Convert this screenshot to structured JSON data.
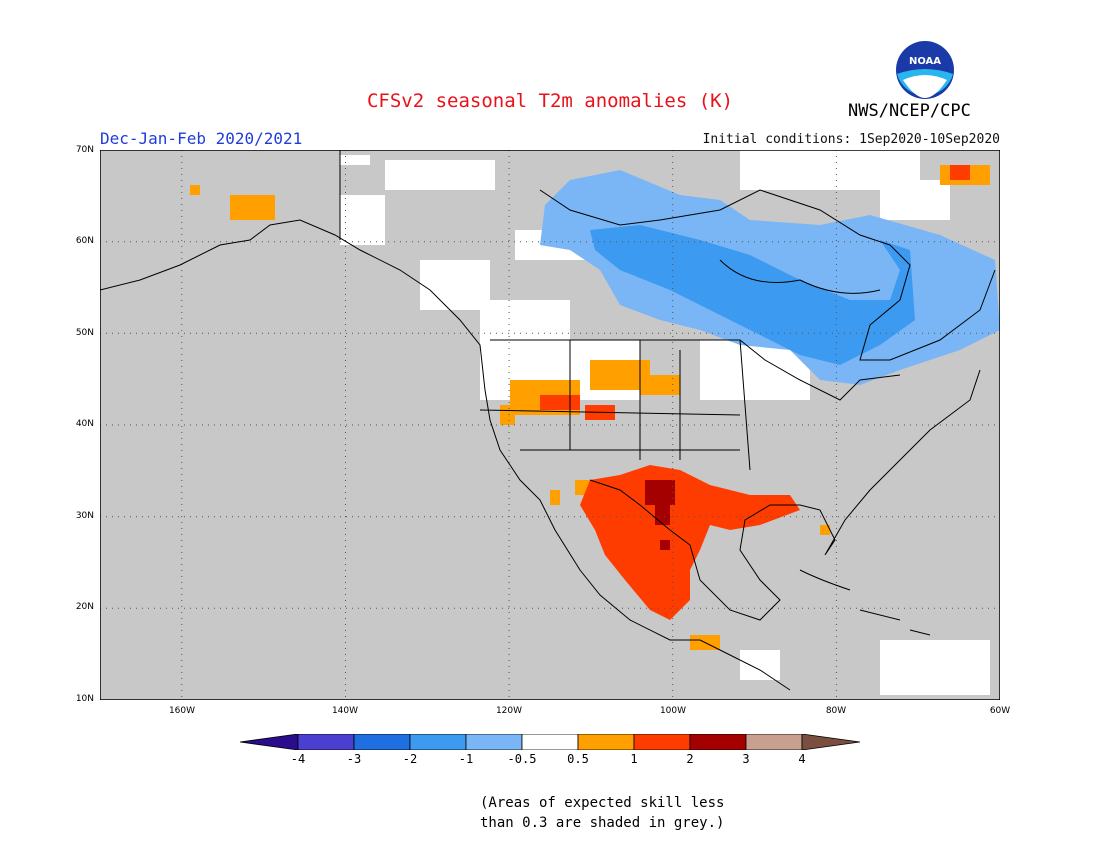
{
  "header": {
    "title": "CFSv2 seasonal T2m anomalies (K)",
    "title_color": "#e8121b",
    "season": "Dec-Jan-Feb 2020/2021",
    "season_color": "#1f3dd9",
    "initial_conditions": "Initial conditions: 1Sep2020-10Sep2020",
    "agency": "NWS/NCEP/CPC",
    "logo_text": "NOAA"
  },
  "map": {
    "region": "North America",
    "lat_range": [
      10,
      70
    ],
    "lon_range": [
      -170,
      -60
    ],
    "lat_labels": [
      "70N",
      "60N",
      "50N",
      "40N",
      "30N",
      "20N",
      "10N"
    ],
    "lon_labels": [
      "160W",
      "140W",
      "120W",
      "100W",
      "80W",
      "60W"
    ],
    "grid": "dotted",
    "background_color": "#c8c8c8",
    "anomaly_regions": [
      {
        "area": "Northern Canada / Hudson Bay",
        "category": "-1 to -0.5",
        "color": "#7ab6f5"
      },
      {
        "area": "Central Canada band",
        "category": "-2 to -1",
        "color": "#3c9af0"
      },
      {
        "area": "Northern Rockies / Great Basin",
        "category": "0.5 to 1",
        "color": "#ffa000"
      },
      {
        "area": "Southern Plains / Texas / Mexico",
        "category": "1 to 2",
        "color": "#ff3c00"
      },
      {
        "area": "Central Texas core",
        "category": "2 to 3",
        "color": "#a50000"
      },
      {
        "area": "Western Alaska",
        "category": "0.5 to 1",
        "color": "#ffa000"
      },
      {
        "area": "Greenland coast",
        "category": "1 to 2",
        "color": "#ff3c00"
      }
    ]
  },
  "colorbar": {
    "labels": [
      "-4",
      "-3",
      "-2",
      "-1",
      "-0.5",
      "0.5",
      "1",
      "2",
      "3",
      "4"
    ],
    "colors": [
      "#2a0d8c",
      "#4b3fd1",
      "#1f6fe0",
      "#3c9af0",
      "#7ab6f5",
      "#ffffff",
      "#ffa000",
      "#ff3c00",
      "#a50000",
      "#c8a090",
      "#7a4f3f"
    ]
  },
  "note": {
    "line1": "(Areas of expected skill less",
    "line2": "than 0.3 are shaded in grey.)"
  }
}
